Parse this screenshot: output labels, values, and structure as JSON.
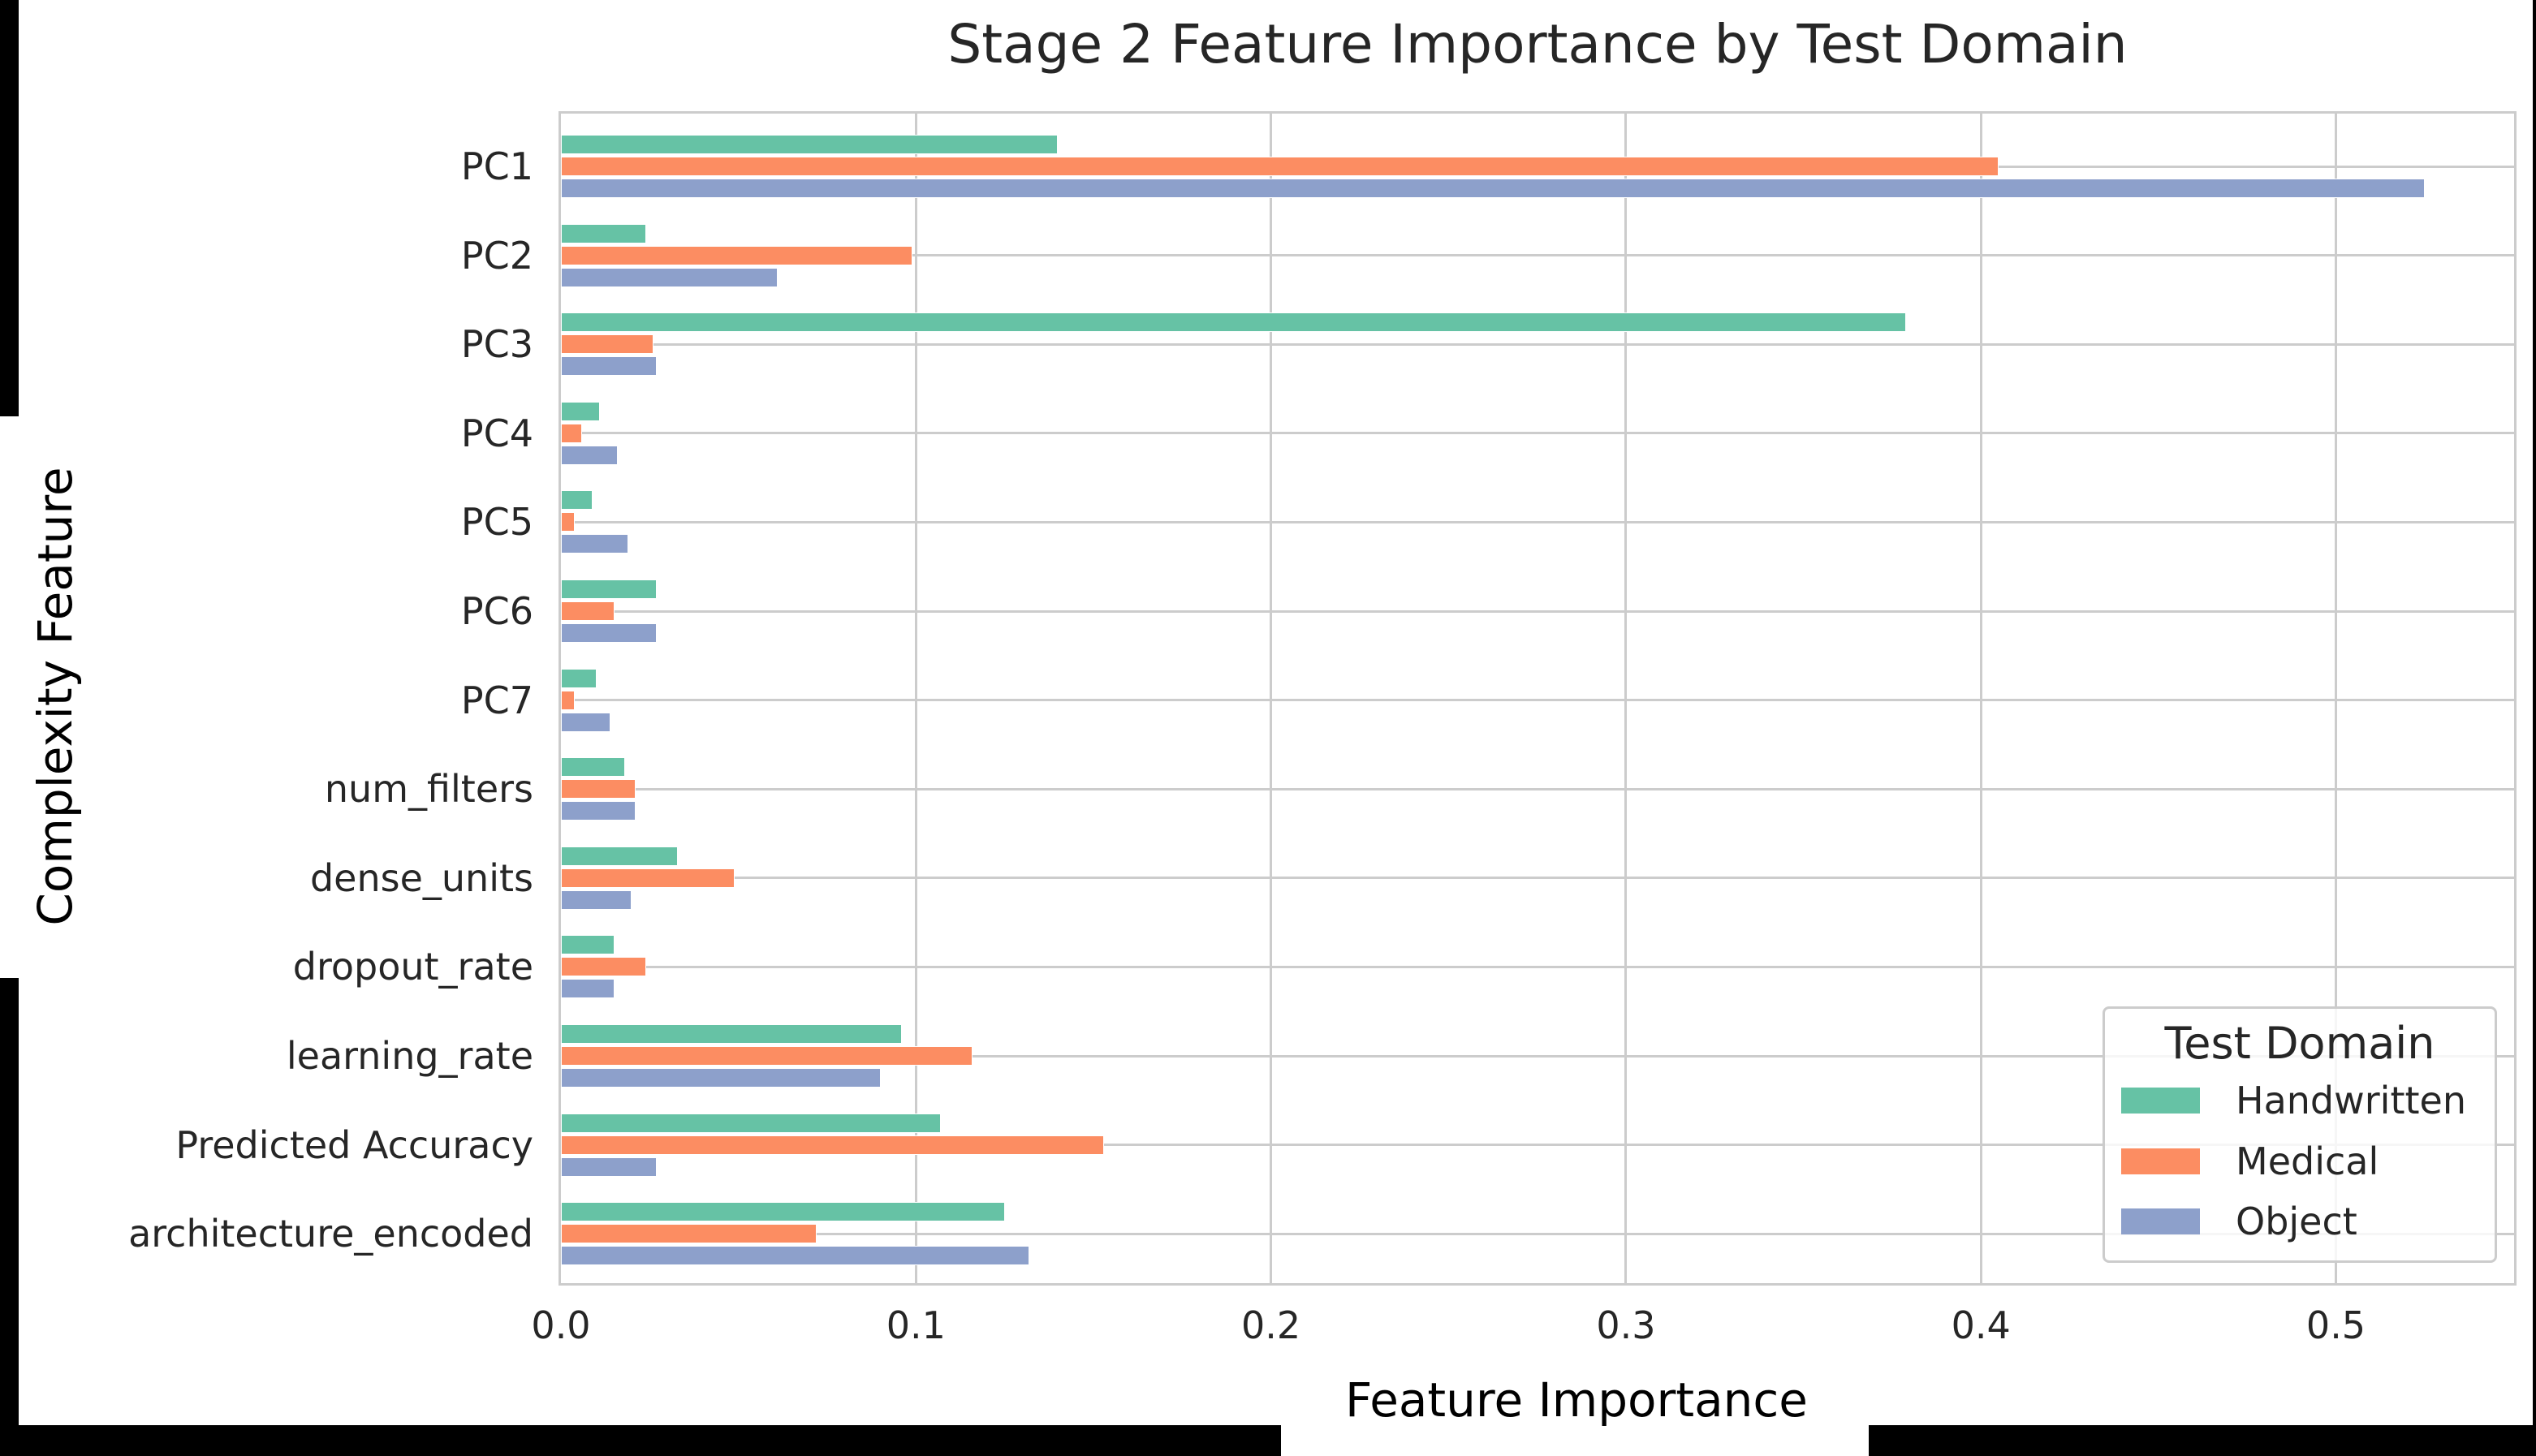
{
  "chart_data": {
    "type": "bar",
    "orientation": "horizontal",
    "title": "Stage 2 Feature Importance by Test Domain",
    "xlabel": "Feature Importance",
    "ylabel": "Complexity Feature",
    "xlim": [
      0.0,
      0.551
    ],
    "xticks": [
      0.0,
      0.1,
      0.2,
      0.3,
      0.4,
      0.5
    ],
    "xtick_labels": [
      "0.0",
      "0.1",
      "0.2",
      "0.3",
      "0.4",
      "0.5"
    ],
    "grid": true,
    "legend_title": "Test Domain",
    "legend_position": "lower right",
    "categories": [
      "PC1",
      "PC2",
      "PC3",
      "PC4",
      "PC5",
      "PC6",
      "PC7",
      "num_filters",
      "dense_units",
      "dropout_rate",
      "learning_rate",
      "Predicted Accuracy",
      "architecture_encoded"
    ],
    "series": [
      {
        "name": "Handwritten",
        "color": "#66c2a5",
        "values": [
          0.14,
          0.024,
          0.379,
          0.011,
          0.009,
          0.027,
          0.01,
          0.018,
          0.033,
          0.015,
          0.096,
          0.107,
          0.125
        ]
      },
      {
        "name": "Medical",
        "color": "#fc8d62",
        "values": [
          0.405,
          0.099,
          0.026,
          0.006,
          0.004,
          0.015,
          0.004,
          0.021,
          0.049,
          0.024,
          0.116,
          0.153,
          0.072
        ]
      },
      {
        "name": "Object",
        "color": "#8da0cb",
        "values": [
          0.525,
          0.061,
          0.027,
          0.016,
          0.019,
          0.027,
          0.014,
          0.021,
          0.02,
          0.015,
          0.09,
          0.027,
          0.132
        ]
      }
    ]
  }
}
